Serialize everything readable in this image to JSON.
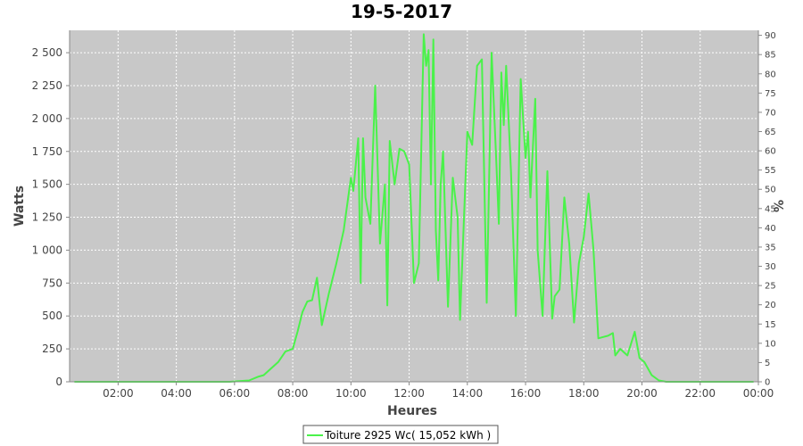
{
  "chart_data": {
    "type": "line",
    "title": "19-5-2017",
    "xlabel": "Heures",
    "ylabel": "Watts",
    "ylabel_right": "%",
    "x_ticks": [
      "02:00",
      "04:00",
      "06:00",
      "08:00",
      "10:00",
      "12:00",
      "14:00",
      "16:00",
      "18:00",
      "20:00",
      "22:00",
      "00:00"
    ],
    "y_ticks": [
      "0",
      "250",
      "500",
      "750",
      "1 000",
      "1 250",
      "1 500",
      "1 750",
      "2 000",
      "2 250",
      "2 500"
    ],
    "y_ticks_right": [
      "0",
      "5",
      "10",
      "15",
      "20",
      "25",
      "30",
      "35",
      "40",
      "45",
      "50",
      "55",
      "60",
      "65",
      "70",
      "75",
      "80",
      "85",
      "90"
    ],
    "xlim": [
      "00:20",
      "24:00"
    ],
    "ylim": [
      0,
      2670
    ],
    "ylim_right": [
      0,
      91.3
    ],
    "grid": true,
    "legend_position": "bottom-center",
    "colors": {
      "plot_bg": "#c8c8c8",
      "line": "#4af24a",
      "grid": "#ffffff"
    },
    "series": [
      {
        "name": "Toiture 2925 Wc( 15,052 kWh )",
        "x": [
          "00:30",
          "05:50",
          "06:30",
          "06:50",
          "07:00",
          "07:15",
          "07:30",
          "07:45",
          "08:00",
          "08:10",
          "08:20",
          "08:30",
          "08:40",
          "08:50",
          "09:00",
          "09:15",
          "09:30",
          "09:45",
          "10:00",
          "10:05",
          "10:15",
          "10:20",
          "10:25",
          "10:30",
          "10:40",
          "10:50",
          "11:00",
          "11:10",
          "11:15",
          "11:20",
          "11:30",
          "11:40",
          "11:50",
          "12:00",
          "12:10",
          "12:20",
          "12:30",
          "12:35",
          "12:40",
          "12:45",
          "12:50",
          "12:55",
          "13:00",
          "13:05",
          "13:10",
          "13:20",
          "13:30",
          "13:40",
          "13:45",
          "14:00",
          "14:10",
          "14:20",
          "14:30",
          "14:40",
          "14:50",
          "15:00",
          "15:05",
          "15:10",
          "15:15",
          "15:20",
          "15:30",
          "15:40",
          "15:50",
          "16:00",
          "16:05",
          "16:10",
          "16:20",
          "16:25",
          "16:35",
          "16:45",
          "16:55",
          "17:00",
          "17:10",
          "17:20",
          "17:30",
          "17:40",
          "17:50",
          "18:00",
          "18:10",
          "18:20",
          "18:30",
          "18:40",
          "18:50",
          "19:00",
          "19:05",
          "19:15",
          "19:30",
          "19:45",
          "19:55",
          "20:05",
          "20:20",
          "20:35",
          "20:50",
          "21:00",
          "23:50"
        ],
        "values": [
          0,
          0,
          10,
          40,
          50,
          100,
          150,
          230,
          250,
          380,
          530,
          610,
          620,
          790,
          430,
          680,
          900,
          1150,
          1550,
          1450,
          1850,
          750,
          1850,
          1400,
          1200,
          2250,
          1050,
          1500,
          580,
          1830,
          1500,
          1770,
          1750,
          1650,
          750,
          900,
          2640,
          2400,
          2520,
          1500,
          2600,
          1150,
          770,
          1500,
          1750,
          570,
          1550,
          1250,
          470,
          1900,
          1800,
          2400,
          2450,
          600,
          2500,
          1650,
          1200,
          2350,
          1950,
          2400,
          1600,
          500,
          2300,
          1700,
          1900,
          1400,
          2150,
          1000,
          500,
          1600,
          480,
          650,
          700,
          1400,
          1050,
          450,
          900,
          1100,
          1430,
          1000,
          330,
          340,
          350,
          370,
          200,
          250,
          200,
          380,
          180,
          150,
          50,
          10,
          0,
          0,
          0
        ]
      }
    ]
  }
}
